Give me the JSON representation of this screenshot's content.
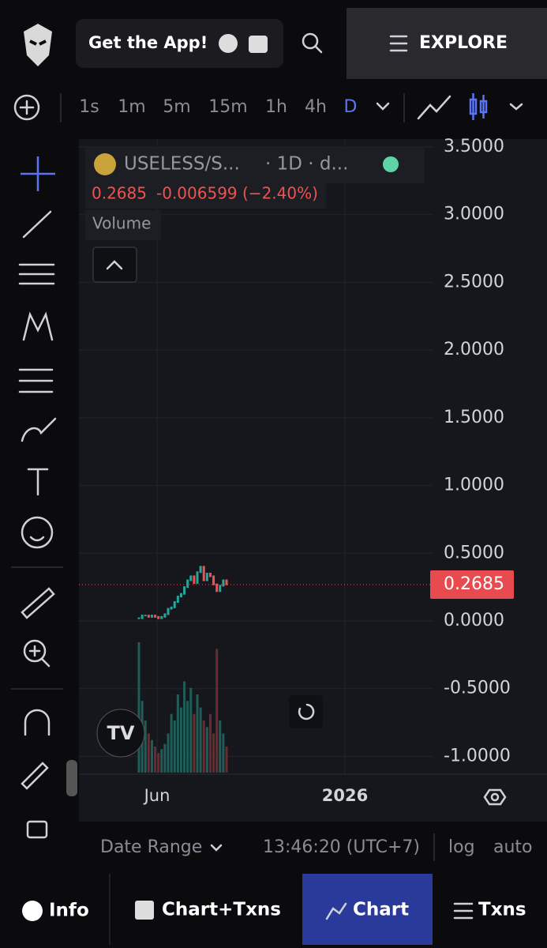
{
  "header": {
    "cta": "Get the App!",
    "explore": "EXPLORE"
  },
  "intervals": [
    "1s",
    "1m",
    "5m",
    "15m",
    "1h",
    "4h",
    "D"
  ],
  "chart": {
    "type": "candlestick",
    "symbol": "USELESS/S...",
    "resolution": "· 1D · d...",
    "last_price": 0.2685,
    "change": "-0.006599 (−2.40%)",
    "volume_label": "Volume",
    "closes": [
      0.02,
      0.04,
      0.04,
      0.03,
      0.04,
      0.03,
      0.02,
      0.03,
      0.05,
      0.09,
      0.1,
      0.14,
      0.18,
      0.2,
      0.25,
      0.3,
      0.33,
      0.28,
      0.36,
      0.4,
      0.3,
      0.35,
      0.33,
      0.27,
      0.22,
      0.26,
      0.3,
      0.27
    ],
    "volumes": [
      100,
      55,
      40,
      30,
      25,
      20,
      15,
      18,
      22,
      30,
      45,
      40,
      60,
      50,
      70,
      55,
      65,
      45,
      60,
      50,
      40,
      35,
      45,
      30,
      95,
      40,
      30,
      20
    ],
    "ylim": [
      -1.1,
      3.55
    ],
    "yticks": [
      {
        "value": 3.5,
        "label": "3.5000"
      },
      {
        "value": 3,
        "label": "3.0000"
      },
      {
        "value": 2.5,
        "label": "2.5000"
      },
      {
        "value": 2,
        "label": "2.0000"
      },
      {
        "value": 1.5,
        "label": "1.5000"
      },
      {
        "value": 1,
        "label": "1.0000"
      },
      {
        "value": 0.5,
        "label": "0.5000"
      },
      {
        "value": 0,
        "label": "0.0000"
      },
      {
        "value": -0.5,
        "label": "-0.5000"
      },
      {
        "value": -1,
        "label": "-1.0000"
      }
    ],
    "xticks": [
      "Jun",
      "2026"
    ]
  },
  "footer": {
    "date_range": "Date Range",
    "time": "13:46:20 (UTC+7)",
    "log": "log",
    "auto": "auto"
  },
  "nav": [
    "Info",
    "Chart+Txns",
    "Chart",
    "Txns"
  ]
}
